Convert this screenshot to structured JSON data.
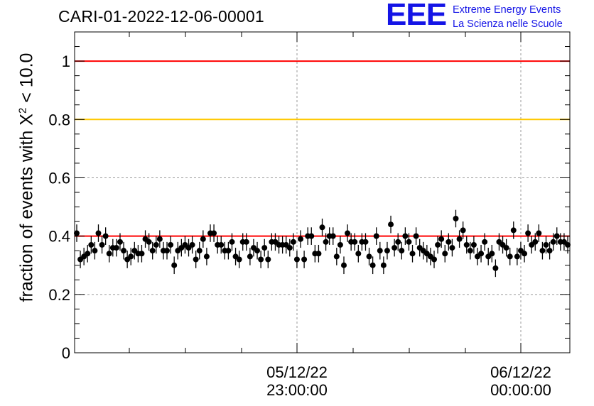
{
  "header": {
    "title": "CARI-01-2022-12-06-00001",
    "logo_mark": "EEE",
    "logo_line1": "Extreme Energy Events",
    "logo_line2": "La Scienza nelle Scuole"
  },
  "chart_data": {
    "type": "scatter",
    "title": "CARI-01-2022-12-06-00001",
    "ylabel_prefix": "fraction of events with X",
    "ylabel_sup": "2",
    "ylabel_suffix": " < 10.0",
    "ylim": [
      0,
      1.1
    ],
    "y_ticks": [
      {
        "value": 0,
        "label": "0"
      },
      {
        "value": 0.2,
        "label": "0.2"
      },
      {
        "value": 0.4,
        "label": "0.4"
      },
      {
        "value": 0.6,
        "label": "0.6"
      },
      {
        "value": 0.8,
        "label": "0.8"
      },
      {
        "value": 1,
        "label": "1"
      }
    ],
    "x_major_ticks": [
      {
        "label1": "05/12/22",
        "label2": "23:00:00"
      },
      {
        "label1": "06/12/22",
        "label2": "00:00:00"
      }
    ],
    "grid": true,
    "reference_lines": [
      {
        "y": 1.0,
        "color": "#ff0000"
      },
      {
        "y": 0.8,
        "color": "#ffc800"
      },
      {
        "y": 0.4,
        "color": "#ff0000"
      }
    ],
    "marker_color": "#000000",
    "error": 0.03,
    "series": [
      {
        "values": [
          0.41,
          0.32,
          0.33,
          0.34,
          0.37,
          0.35,
          0.41,
          0.37,
          0.4,
          0.34,
          0.36,
          0.36,
          0.38,
          0.35,
          0.32,
          0.33,
          0.35,
          0.34,
          0.34,
          0.39,
          0.38,
          0.35,
          0.37,
          0.39,
          0.35,
          0.35,
          0.37,
          0.3,
          0.35,
          0.36,
          0.37,
          0.36,
          0.37,
          0.32,
          0.35,
          0.39,
          0.33,
          0.41,
          0.41,
          0.37,
          0.37,
          0.35,
          0.35,
          0.38,
          0.33,
          0.32,
          0.38,
          0.38,
          0.33,
          0.36,
          0.35,
          0.32,
          0.36,
          0.32,
          0.38,
          0.38,
          0.37,
          0.37,
          0.37,
          0.36,
          0.38,
          0.32,
          0.39,
          0.32,
          0.4,
          0.4,
          0.34,
          0.34,
          0.43,
          0.38,
          0.4,
          0.4,
          0.33,
          0.37,
          0.3,
          0.41,
          0.38,
          0.38,
          0.34,
          0.38,
          0.38,
          0.33,
          0.3,
          0.4,
          0.35,
          0.3,
          0.35,
          0.44,
          0.36,
          0.38,
          0.35,
          0.4,
          0.38,
          0.34,
          0.4,
          0.36,
          0.35,
          0.34,
          0.33,
          0.32,
          0.37,
          0.39,
          0.34,
          0.38,
          0.36,
          0.46,
          0.39,
          0.42,
          0.37,
          0.35,
          0.37,
          0.33,
          0.34,
          0.38,
          0.33,
          0.34,
          0.29,
          0.38,
          0.37,
          0.36,
          0.33,
          0.42,
          0.33,
          0.35,
          0.34,
          0.41,
          0.37,
          0.38,
          0.41,
          0.35,
          0.37,
          0.35,
          0.38,
          0.4,
          0.38,
          0.38,
          0.37
        ]
      }
    ]
  }
}
